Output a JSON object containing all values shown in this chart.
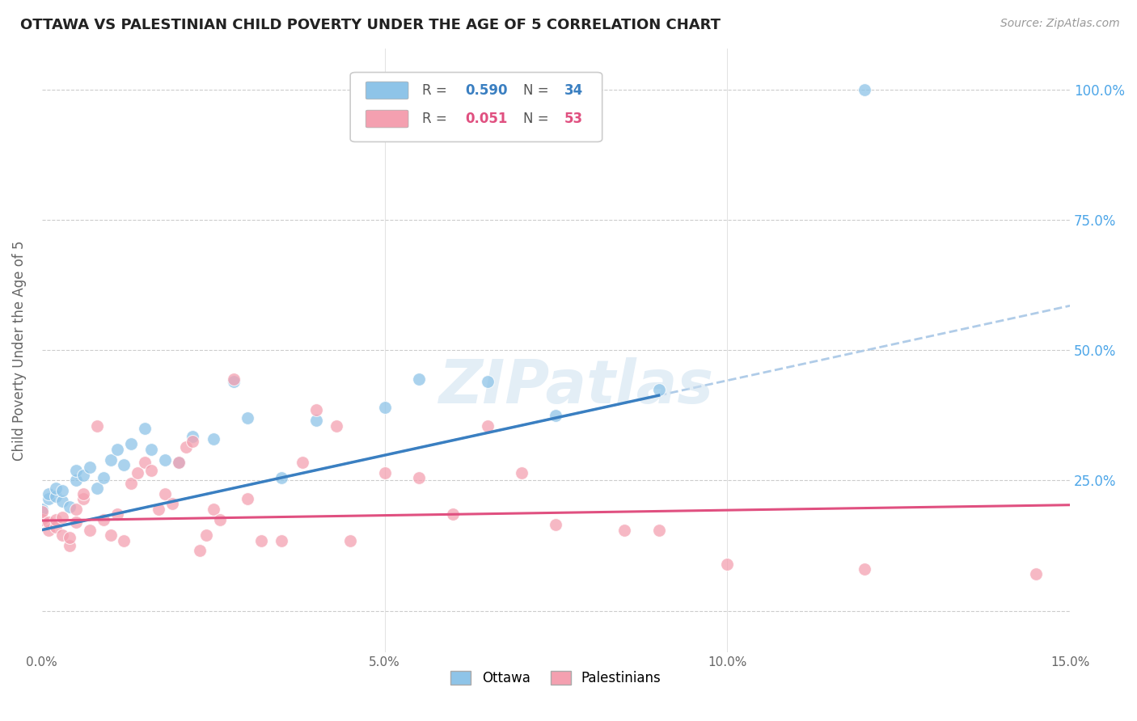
{
  "title": "OTTAWA VS PALESTINIAN CHILD POVERTY UNDER THE AGE OF 5 CORRELATION CHART",
  "source": "Source: ZipAtlas.com",
  "ylabel_label": "Child Poverty Under the Age of 5",
  "watermark": "ZIPatlas",
  "ottawa_R": "0.590",
  "ottawa_N": "34",
  "palestinians_R": "0.051",
  "palestinians_N": "53",
  "ottawa_color": "#8ec4e8",
  "palestinian_color": "#f4a0b0",
  "blue_line_color": "#3a7fc1",
  "pink_line_color": "#e05080",
  "dashed_line_color": "#b0cce8",
  "xmin": 0.0,
  "xmax": 0.15,
  "ymin": -0.08,
  "ymax": 1.08,
  "ottawa_x": [
    0.0,
    0.001,
    0.001,
    0.002,
    0.002,
    0.003,
    0.003,
    0.004,
    0.005,
    0.005,
    0.006,
    0.007,
    0.008,
    0.009,
    0.01,
    0.011,
    0.012,
    0.013,
    0.015,
    0.016,
    0.018,
    0.02,
    0.022,
    0.025,
    0.028,
    0.03,
    0.035,
    0.04,
    0.05,
    0.055,
    0.065,
    0.075,
    0.09,
    0.12
  ],
  "ottawa_y": [
    0.195,
    0.215,
    0.225,
    0.22,
    0.235,
    0.21,
    0.23,
    0.2,
    0.25,
    0.27,
    0.26,
    0.275,
    0.235,
    0.255,
    0.29,
    0.31,
    0.28,
    0.32,
    0.35,
    0.31,
    0.29,
    0.285,
    0.335,
    0.33,
    0.44,
    0.37,
    0.255,
    0.365,
    0.39,
    0.445,
    0.44,
    0.375,
    0.425,
    1.0
  ],
  "palestinian_x": [
    0.0,
    0.0,
    0.001,
    0.001,
    0.002,
    0.002,
    0.003,
    0.003,
    0.004,
    0.004,
    0.005,
    0.005,
    0.006,
    0.006,
    0.007,
    0.008,
    0.009,
    0.01,
    0.011,
    0.012,
    0.013,
    0.014,
    0.015,
    0.016,
    0.017,
    0.018,
    0.019,
    0.02,
    0.021,
    0.022,
    0.023,
    0.024,
    0.025,
    0.026,
    0.028,
    0.03,
    0.032,
    0.035,
    0.038,
    0.04,
    0.043,
    0.045,
    0.05,
    0.055,
    0.06,
    0.065,
    0.07,
    0.075,
    0.085,
    0.09,
    0.1,
    0.12,
    0.145
  ],
  "palestinian_y": [
    0.175,
    0.19,
    0.155,
    0.17,
    0.16,
    0.175,
    0.145,
    0.18,
    0.125,
    0.14,
    0.17,
    0.195,
    0.215,
    0.225,
    0.155,
    0.355,
    0.175,
    0.145,
    0.185,
    0.135,
    0.245,
    0.265,
    0.285,
    0.27,
    0.195,
    0.225,
    0.205,
    0.285,
    0.315,
    0.325,
    0.115,
    0.145,
    0.195,
    0.175,
    0.445,
    0.215,
    0.135,
    0.135,
    0.285,
    0.385,
    0.355,
    0.135,
    0.265,
    0.255,
    0.185,
    0.355,
    0.265,
    0.165,
    0.155,
    0.155,
    0.09,
    0.08,
    0.07
  ]
}
